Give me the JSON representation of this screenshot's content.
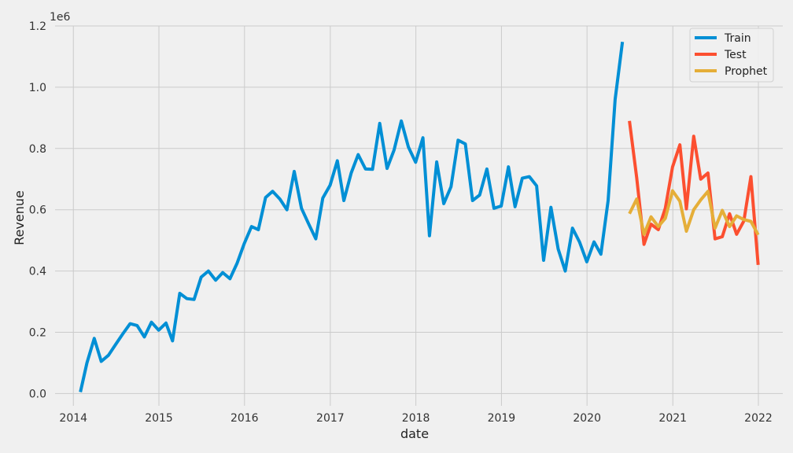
{
  "chart_data": {
    "type": "line",
    "title": "",
    "xlabel": "date",
    "ylabel": "Revenue",
    "y_offset_text": "1e6",
    "xlim": [
      "2013-10-15",
      "2022-04-15"
    ],
    "ylim": [
      -0.04,
      1.2
    ],
    "x_ticks": [
      {
        "value": "2014-01-01",
        "label": "2014"
      },
      {
        "value": "2015-01-01",
        "label": "2015"
      },
      {
        "value": "2016-01-01",
        "label": "2016"
      },
      {
        "value": "2017-01-01",
        "label": "2017"
      },
      {
        "value": "2018-01-01",
        "label": "2018"
      },
      {
        "value": "2019-01-01",
        "label": "2019"
      },
      {
        "value": "2020-01-01",
        "label": "2020"
      },
      {
        "value": "2021-01-01",
        "label": "2021"
      },
      {
        "value": "2022-01-01",
        "label": "2022"
      }
    ],
    "y_ticks": [
      {
        "value": 0.0,
        "label": "0.0"
      },
      {
        "value": 0.2,
        "label": "0.2"
      },
      {
        "value": 0.4,
        "label": "0.4"
      },
      {
        "value": 0.6,
        "label": "0.6"
      },
      {
        "value": 0.8,
        "label": "0.8"
      },
      {
        "value": 1.0,
        "label": "1.0"
      },
      {
        "value": 1.2,
        "label": "1.2"
      }
    ],
    "grid": true,
    "legend_position": "top-right",
    "series": [
      {
        "name": "Train",
        "color": "#008fd5",
        "points": [
          [
            "2014-01-31",
            0.005
          ],
          [
            "2014-02-28",
            0.1
          ],
          [
            "2014-03-31",
            0.18
          ],
          [
            "2014-04-30",
            0.105
          ],
          [
            "2014-05-31",
            0.125
          ],
          [
            "2014-06-30",
            0.16
          ],
          [
            "2014-07-31",
            0.195
          ],
          [
            "2014-08-31",
            0.228
          ],
          [
            "2014-09-30",
            0.222
          ],
          [
            "2014-10-31",
            0.185
          ],
          [
            "2014-11-30",
            0.233
          ],
          [
            "2014-12-31",
            0.207
          ],
          [
            "2015-01-31",
            0.23
          ],
          [
            "2015-02-28",
            0.172
          ],
          [
            "2015-03-31",
            0.327
          ],
          [
            "2015-04-30",
            0.31
          ],
          [
            "2015-05-31",
            0.307
          ],
          [
            "2015-06-30",
            0.38
          ],
          [
            "2015-07-31",
            0.4
          ],
          [
            "2015-08-31",
            0.37
          ],
          [
            "2015-09-30",
            0.395
          ],
          [
            "2015-10-31",
            0.375
          ],
          [
            "2015-11-30",
            0.425
          ],
          [
            "2015-12-31",
            0.49
          ],
          [
            "2016-01-31",
            0.545
          ],
          [
            "2016-02-29",
            0.535
          ],
          [
            "2016-03-31",
            0.64
          ],
          [
            "2016-04-30",
            0.66
          ],
          [
            "2016-05-31",
            0.635
          ],
          [
            "2016-06-30",
            0.6
          ],
          [
            "2016-07-31",
            0.725
          ],
          [
            "2016-08-31",
            0.605
          ],
          [
            "2016-09-30",
            0.555
          ],
          [
            "2016-10-31",
            0.505
          ],
          [
            "2016-11-30",
            0.638
          ],
          [
            "2016-12-31",
            0.68
          ],
          [
            "2017-01-31",
            0.76
          ],
          [
            "2017-02-28",
            0.63
          ],
          [
            "2017-03-31",
            0.72
          ],
          [
            "2017-04-30",
            0.78
          ],
          [
            "2017-05-31",
            0.733
          ],
          [
            "2017-06-30",
            0.732
          ],
          [
            "2017-07-31",
            0.882
          ],
          [
            "2017-08-31",
            0.735
          ],
          [
            "2017-09-30",
            0.795
          ],
          [
            "2017-10-31",
            0.89
          ],
          [
            "2017-11-30",
            0.805
          ],
          [
            "2017-12-31",
            0.755
          ],
          [
            "2018-01-31",
            0.835
          ],
          [
            "2018-02-28",
            0.515
          ],
          [
            "2018-03-31",
            0.756
          ],
          [
            "2018-04-30",
            0.62
          ],
          [
            "2018-05-31",
            0.675
          ],
          [
            "2018-06-30",
            0.827
          ],
          [
            "2018-07-31",
            0.815
          ],
          [
            "2018-08-31",
            0.63
          ],
          [
            "2018-09-30",
            0.648
          ],
          [
            "2018-10-31",
            0.733
          ],
          [
            "2018-11-30",
            0.605
          ],
          [
            "2018-12-31",
            0.612
          ],
          [
            "2019-01-31",
            0.74
          ],
          [
            "2019-02-28",
            0.61
          ],
          [
            "2019-03-31",
            0.703
          ],
          [
            "2019-04-30",
            0.708
          ],
          [
            "2019-05-31",
            0.678
          ],
          [
            "2019-06-30",
            0.435
          ],
          [
            "2019-07-31",
            0.608
          ],
          [
            "2019-08-31",
            0.472
          ],
          [
            "2019-09-30",
            0.4
          ],
          [
            "2019-10-31",
            0.54
          ],
          [
            "2019-11-30",
            0.495
          ],
          [
            "2019-12-31",
            0.43
          ],
          [
            "2020-01-31",
            0.495
          ],
          [
            "2020-02-29",
            0.455
          ],
          [
            "2020-03-31",
            0.63
          ],
          [
            "2020-04-30",
            0.96
          ],
          [
            "2020-05-31",
            1.148
          ]
        ]
      },
      {
        "name": "Test",
        "color": "#fc4f30",
        "points": [
          [
            "2020-06-30",
            0.89
          ],
          [
            "2020-07-31",
            0.705
          ],
          [
            "2020-08-31",
            0.487
          ],
          [
            "2020-09-30",
            0.553
          ],
          [
            "2020-10-31",
            0.535
          ],
          [
            "2020-11-30",
            0.605
          ],
          [
            "2020-12-31",
            0.74
          ],
          [
            "2021-01-31",
            0.812
          ],
          [
            "2021-02-28",
            0.603
          ],
          [
            "2021-03-31",
            0.84
          ],
          [
            "2021-04-30",
            0.7
          ],
          [
            "2021-05-31",
            0.72
          ],
          [
            "2021-06-30",
            0.505
          ],
          [
            "2021-07-31",
            0.512
          ],
          [
            "2021-08-31",
            0.587
          ],
          [
            "2021-09-30",
            0.52
          ],
          [
            "2021-10-31",
            0.563
          ],
          [
            "2021-11-30",
            0.708
          ],
          [
            "2021-12-31",
            0.42
          ]
        ]
      },
      {
        "name": "Prophet",
        "color": "#e5ae38",
        "points": [
          [
            "2020-06-30",
            0.587
          ],
          [
            "2020-07-31",
            0.635
          ],
          [
            "2020-08-31",
            0.52
          ],
          [
            "2020-09-30",
            0.577
          ],
          [
            "2020-10-31",
            0.545
          ],
          [
            "2020-11-30",
            0.572
          ],
          [
            "2020-12-31",
            0.662
          ],
          [
            "2021-01-31",
            0.628
          ],
          [
            "2021-02-28",
            0.53
          ],
          [
            "2021-03-31",
            0.6
          ],
          [
            "2021-04-30",
            0.632
          ],
          [
            "2021-05-31",
            0.66
          ],
          [
            "2021-06-30",
            0.54
          ],
          [
            "2021-07-31",
            0.598
          ],
          [
            "2021-08-31",
            0.545
          ],
          [
            "2021-09-30",
            0.58
          ],
          [
            "2021-10-31",
            0.568
          ],
          [
            "2021-11-30",
            0.562
          ],
          [
            "2021-12-31",
            0.518
          ]
        ]
      }
    ]
  }
}
